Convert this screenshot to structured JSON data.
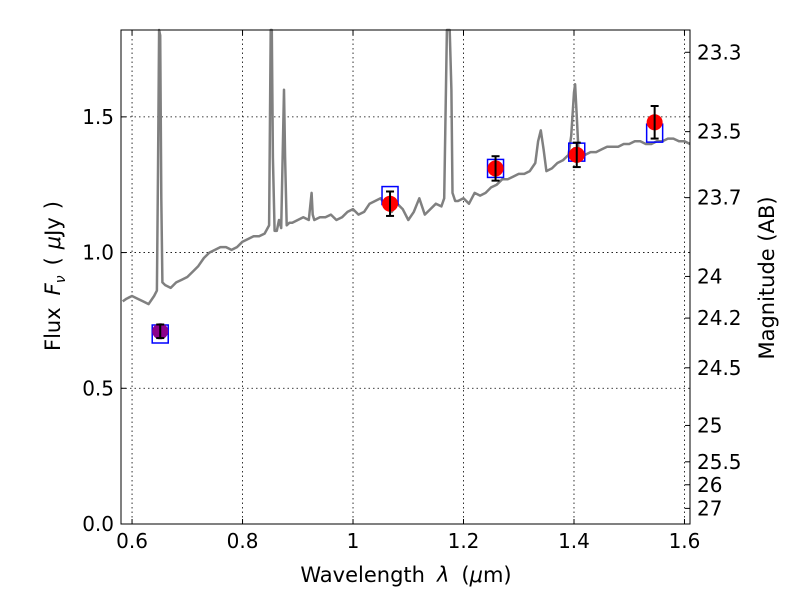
{
  "chart_data": {
    "type": "line",
    "xlabel": "Wavelength λ (μm)",
    "ylabel": "Flux F_ν ( μJy )",
    "ylabel_parts": {
      "pre": "Flux",
      "var": "F",
      "sub": "ν",
      "open": "(",
      "mu": "μ",
      "unit": "Jy",
      "close": ")"
    },
    "xlabel_parts": {
      "pre": "Wavelength",
      "var": "λ",
      "open": "(",
      "mu": "μ",
      "unit": "m)"
    },
    "y2label": "Magnitude (AB)",
    "xlim": [
      0.58,
      1.61
    ],
    "ylim": [
      0.0,
      1.82
    ],
    "grid": true,
    "x_ticks": [
      {
        "value": 0.6,
        "label": "0.6"
      },
      {
        "value": 0.8,
        "label": "0.8"
      },
      {
        "value": 1.0,
        "label": "1"
      },
      {
        "value": 1.2,
        "label": "1.2"
      },
      {
        "value": 1.4,
        "label": "1.4"
      },
      {
        "value": 1.6,
        "label": "1.6"
      }
    ],
    "y_ticks": [
      {
        "value": 0.0,
        "label": "0.0"
      },
      {
        "value": 0.5,
        "label": "0.5"
      },
      {
        "value": 1.0,
        "label": "1.0"
      },
      {
        "value": 1.5,
        "label": "1.5"
      }
    ],
    "y2_ticks": [
      {
        "value": 23.3,
        "label": "23.3"
      },
      {
        "value": 23.5,
        "label": "23.5"
      },
      {
        "value": 23.7,
        "label": "23.7"
      },
      {
        "value": 24.0,
        "label": "24"
      },
      {
        "value": 24.2,
        "label": "24.2"
      },
      {
        "value": 24.5,
        "label": "24.5"
      },
      {
        "value": 25.0,
        "label": "25"
      },
      {
        "value": 25.5,
        "label": "25.5"
      },
      {
        "value": 26.0,
        "label": "26"
      },
      {
        "value": 27.0,
        "label": "27"
      }
    ],
    "series": [
      {
        "kind": "spectrum",
        "color": "#808080",
        "x": [
          0.583,
          0.59,
          0.6,
          0.61,
          0.62,
          0.63,
          0.64,
          0.645,
          0.647,
          0.649,
          0.651,
          0.653,
          0.655,
          0.66,
          0.67,
          0.68,
          0.69,
          0.7,
          0.71,
          0.72,
          0.73,
          0.74,
          0.75,
          0.76,
          0.77,
          0.78,
          0.79,
          0.8,
          0.81,
          0.82,
          0.83,
          0.84,
          0.848,
          0.851,
          0.853,
          0.855,
          0.858,
          0.862,
          0.866,
          0.87,
          0.873,
          0.875,
          0.877,
          0.88,
          0.885,
          0.89,
          0.9,
          0.91,
          0.92,
          0.925,
          0.927,
          0.93,
          0.94,
          0.95,
          0.96,
          0.97,
          0.98,
          0.99,
          1.0,
          1.01,
          1.02,
          1.03,
          1.04,
          1.05,
          1.06,
          1.07,
          1.08,
          1.09,
          1.1,
          1.11,
          1.12,
          1.13,
          1.14,
          1.15,
          1.16,
          1.165,
          1.17,
          1.172,
          1.175,
          1.178,
          1.18,
          1.185,
          1.19,
          1.2,
          1.21,
          1.22,
          1.23,
          1.24,
          1.25,
          1.26,
          1.27,
          1.28,
          1.29,
          1.3,
          1.31,
          1.32,
          1.33,
          1.335,
          1.34,
          1.345,
          1.35,
          1.36,
          1.37,
          1.38,
          1.39,
          1.395,
          1.4,
          1.402,
          1.405,
          1.408,
          1.41,
          1.42,
          1.43,
          1.44,
          1.45,
          1.46,
          1.47,
          1.48,
          1.49,
          1.5,
          1.51,
          1.52,
          1.53,
          1.54,
          1.55,
          1.56,
          1.57,
          1.58,
          1.59,
          1.6,
          1.61
        ],
        "y": [
          0.82,
          0.83,
          0.84,
          0.83,
          0.82,
          0.81,
          0.84,
          0.86,
          1.3,
          1.82,
          1.8,
          1.2,
          0.89,
          0.88,
          0.87,
          0.89,
          0.9,
          0.91,
          0.93,
          0.95,
          0.98,
          1.0,
          1.01,
          1.02,
          1.02,
          1.01,
          1.02,
          1.04,
          1.05,
          1.06,
          1.06,
          1.07,
          1.1,
          1.82,
          1.82,
          1.35,
          1.08,
          1.08,
          1.12,
          1.09,
          1.4,
          1.6,
          1.35,
          1.1,
          1.11,
          1.11,
          1.12,
          1.13,
          1.12,
          1.22,
          1.14,
          1.12,
          1.13,
          1.13,
          1.14,
          1.12,
          1.13,
          1.15,
          1.16,
          1.14,
          1.15,
          1.18,
          1.19,
          1.2,
          1.17,
          1.15,
          1.18,
          1.16,
          1.12,
          1.15,
          1.2,
          1.14,
          1.16,
          1.18,
          1.17,
          1.2,
          1.82,
          1.82,
          1.82,
          1.6,
          1.22,
          1.19,
          1.19,
          1.2,
          1.18,
          1.22,
          1.21,
          1.22,
          1.24,
          1.25,
          1.27,
          1.27,
          1.28,
          1.29,
          1.29,
          1.3,
          1.33,
          1.41,
          1.45,
          1.38,
          1.3,
          1.31,
          1.33,
          1.34,
          1.36,
          1.43,
          1.59,
          1.62,
          1.5,
          1.38,
          1.36,
          1.36,
          1.37,
          1.37,
          1.38,
          1.39,
          1.39,
          1.39,
          1.4,
          1.4,
          1.41,
          1.41,
          1.4,
          1.4,
          1.41,
          1.41,
          1.42,
          1.42,
          1.41,
          1.41,
          1.4
        ]
      },
      {
        "kind": "observed",
        "color": "#ff0000",
        "x": [
          1.067,
          1.258,
          1.405,
          1.546
        ],
        "y": [
          1.18,
          1.31,
          1.36,
          1.48
        ],
        "yerr": [
          0.045,
          0.045,
          0.045,
          0.06
        ]
      },
      {
        "kind": "observed",
        "color": "#8b008b",
        "x": [
          0.651
        ],
        "y": [
          0.71
        ],
        "yerr": [
          0.025
        ]
      },
      {
        "kind": "model_squares",
        "color": "#0000ff",
        "x": [
          0.651,
          1.067,
          1.258,
          1.405,
          1.546
        ],
        "y": [
          0.7,
          1.21,
          1.31,
          1.37,
          1.44
        ]
      }
    ]
  }
}
